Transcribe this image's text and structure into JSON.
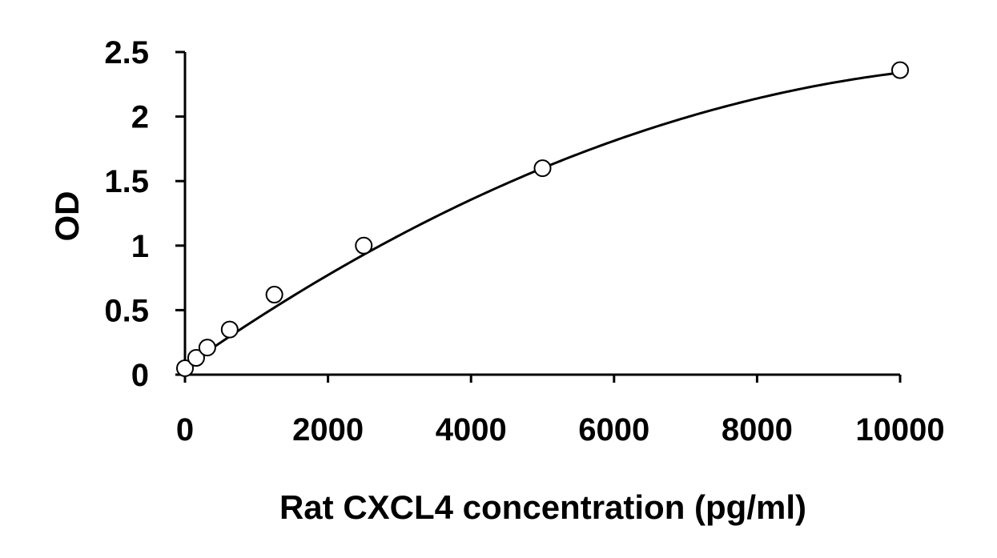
{
  "chart_data": {
    "type": "scatter",
    "xlabel": "Rat CXCL4 concentration (pg/ml)",
    "ylabel": "OD",
    "xlim": [
      0,
      10000
    ],
    "ylim": [
      0,
      2.5
    ],
    "x_ticks": [
      "0",
      "2000",
      "4000",
      "6000",
      "8000",
      "10000"
    ],
    "y_ticks": [
      "0",
      "0.5",
      "1",
      "1.5",
      "2",
      "2.5"
    ],
    "grid": false,
    "legend": "none",
    "series": [
      {
        "marker": "open-circle",
        "points": [
          {
            "x": 0,
            "y": 0.05
          },
          {
            "x": 156,
            "y": 0.13
          },
          {
            "x": 312,
            "y": 0.21
          },
          {
            "x": 625,
            "y": 0.35
          },
          {
            "x": 1250,
            "y": 0.62
          },
          {
            "x": 2500,
            "y": 1.0
          },
          {
            "x": 5000,
            "y": 1.6
          },
          {
            "x": 10000,
            "y": 2.36
          }
        ]
      }
    ],
    "fit_curve": {
      "type": "polynomial",
      "coefficients": [
        0.06,
        0.000388,
        -1.6e-08
      ]
    },
    "colors": {
      "axis": "#000000",
      "marker_stroke": "#000000",
      "marker_fill": "#ffffff",
      "curve": "#000000"
    }
  }
}
